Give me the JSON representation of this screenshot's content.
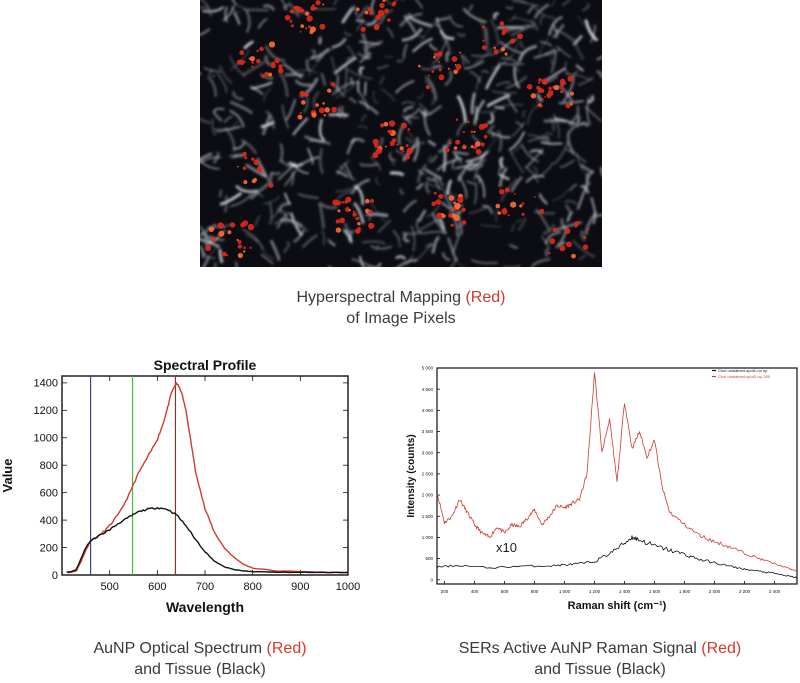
{
  "captions": {
    "top": {
      "line1_pre": "Hyperspectral Mapping ",
      "line1_red": "(Red)",
      "line2": "of Image Pixels"
    },
    "left": {
      "line1_pre": "AuNP Optical Spectrum ",
      "line1_red": "(Red)",
      "line2": "and Tissue (Black)"
    },
    "right": {
      "line1_pre": "SERs Active AuNP Raman Signal ",
      "line1_red": "(Red)",
      "line2": "and Tissue (Black)"
    }
  },
  "colors": {
    "red": "#d23a2e",
    "black": "#111111",
    "marker_blue": "#3d4a8a",
    "marker_green": "#3fbf3f",
    "marker_brown": "#7a3b2e"
  },
  "chart_data": [
    {
      "type": "line",
      "title": "Spectral Profile",
      "xlabel": "Wavelength",
      "ylabel": "Value",
      "xlim": [
        400,
        1000
      ],
      "ylim": [
        0,
        1450
      ],
      "xticks": [
        500,
        600,
        700,
        800,
        900,
        1000
      ],
      "yticks": [
        0,
        200,
        400,
        600,
        800,
        1000,
        1200,
        1400
      ],
      "vertical_markers": [
        460,
        548,
        638
      ],
      "series": [
        {
          "color": "red",
          "x": [
            410,
            420,
            430,
            440,
            450,
            460,
            480,
            500,
            520,
            540,
            560,
            580,
            600,
            610,
            620,
            630,
            640,
            650,
            660,
            670,
            680,
            700,
            720,
            740,
            760,
            780,
            800,
            850,
            900,
            950,
            1000
          ],
          "y": [
            20,
            20,
            30,
            100,
            180,
            250,
            290,
            360,
            450,
            580,
            740,
            860,
            990,
            1080,
            1200,
            1330,
            1400,
            1340,
            1200,
            980,
            760,
            480,
            310,
            200,
            130,
            80,
            50,
            30,
            25,
            20,
            20
          ]
        },
        {
          "color": "black",
          "x": [
            410,
            420,
            430,
            440,
            450,
            460,
            480,
            500,
            520,
            540,
            560,
            580,
            600,
            620,
            640,
            660,
            680,
            700,
            720,
            740,
            760,
            780,
            800,
            850,
            900,
            950,
            1000
          ],
          "y": [
            20,
            25,
            40,
            120,
            200,
            250,
            290,
            330,
            380,
            420,
            460,
            480,
            490,
            480,
            440,
            360,
            260,
            170,
            100,
            60,
            40,
            30,
            25,
            20,
            20,
            18,
            18
          ]
        }
      ]
    },
    {
      "type": "line",
      "title": "",
      "xlabel": "Raman shift (cm⁻¹)",
      "ylabel": "Intensity (counts)",
      "xlim": [
        150,
        2550
      ],
      "ylim": [
        -100,
        5000
      ],
      "xticks": [
        200,
        400,
        600,
        800,
        1000,
        1200,
        1400,
        1600,
        1800,
        2000,
        2200,
        2400
      ],
      "xtick_labels": [
        "200",
        "400",
        "600",
        "800",
        "1 000",
        "1 200",
        "1 400",
        "1 600",
        "1 800",
        "2 000",
        "2 200",
        "2 400"
      ],
      "yticks": [
        0,
        500,
        1000,
        1500,
        2000,
        2500,
        3000,
        3500,
        4000,
        4500,
        5000
      ],
      "ytick_labels": [
        "0",
        "500",
        "1 000",
        "1 500",
        "2 000",
        "2 500",
        "3 000",
        "3 500",
        "4 000",
        "4 500",
        "5 000"
      ],
      "legend": {
        "placement": "top-right",
        "entries": [
          "ChoI unstained-spot1-no np",
          "ChoI unstained-spot2-np-785"
        ]
      },
      "annotation": "x10",
      "series": [
        {
          "color": "red",
          "x": [
            150,
            200,
            250,
            300,
            350,
            400,
            450,
            500,
            550,
            600,
            650,
            700,
            750,
            800,
            850,
            900,
            950,
            1000,
            1050,
            1100,
            1150,
            1200,
            1250,
            1300,
            1350,
            1400,
            1450,
            1500,
            1550,
            1600,
            1650,
            1700,
            1800,
            1900,
            2000,
            2100,
            2200,
            2300,
            2400,
            2500,
            2550
          ],
          "y": [
            2050,
            1350,
            1500,
            1900,
            1600,
            1300,
            1100,
            1000,
            1250,
            1100,
            1300,
            1250,
            1450,
            1650,
            1300,
            1500,
            1750,
            1700,
            1800,
            1900,
            2500,
            4900,
            3000,
            3800,
            2300,
            4200,
            3100,
            3500,
            2900,
            3300,
            2200,
            1600,
            1300,
            1050,
            900,
            780,
            630,
            500,
            380,
            260,
            200
          ]
        },
        {
          "color": "black",
          "x": [
            150,
            300,
            500,
            700,
            900,
            1000,
            1100,
            1200,
            1300,
            1400,
            1450,
            1500,
            1600,
            1700,
            1800,
            1900,
            2000,
            2100,
            2200,
            2300,
            2400,
            2500,
            2550
          ],
          "y": [
            300,
            340,
            280,
            320,
            330,
            350,
            380,
            430,
            620,
            860,
            1010,
            940,
            800,
            700,
            600,
            480,
            400,
            320,
            250,
            200,
            150,
            80,
            50
          ]
        }
      ]
    }
  ]
}
